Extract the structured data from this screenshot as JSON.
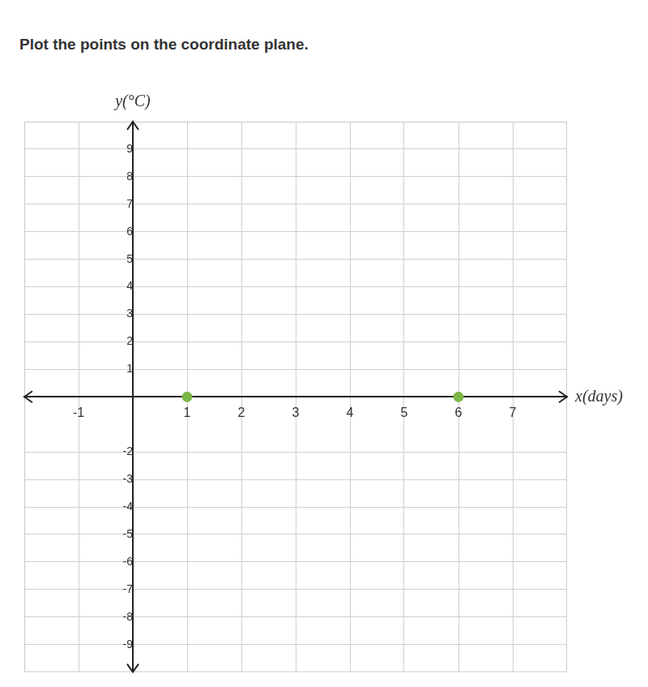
{
  "chart_data": {
    "type": "scatter",
    "title": "Plot the points on the coordinate plane.",
    "x_label": "x(days)",
    "y_label": "y(°C)",
    "x": [
      1,
      6
    ],
    "values": [
      0,
      0
    ],
    "color": "#7ab648",
    "marker": "circle",
    "xlim": [
      -2,
      8
    ],
    "ylim": [
      -10,
      10
    ],
    "xticks": [
      -1,
      1,
      2,
      3,
      4,
      5,
      6,
      7
    ],
    "yticks": [
      -9,
      -8,
      -7,
      -6,
      -5,
      -4,
      -3,
      -2,
      1,
      2,
      3,
      4,
      5,
      6,
      7,
      8,
      9
    ],
    "grid": true
  }
}
